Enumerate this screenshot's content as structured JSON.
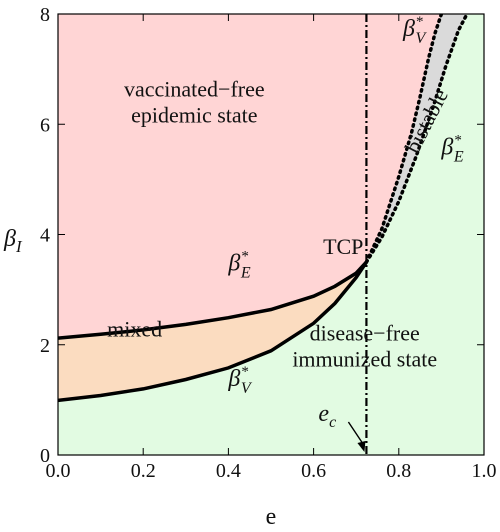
{
  "chart_data": {
    "type": "area",
    "xlabel": "e",
    "ylabel": "β_I",
    "xlim": [
      0,
      1
    ],
    "ylim": [
      0,
      8
    ],
    "x_ticks": [
      "0.0",
      "0.2",
      "0.4",
      "0.6",
      "0.8",
      "1.0"
    ],
    "y_ticks": [
      "0",
      "2",
      "4",
      "6",
      "8"
    ],
    "colors": {
      "epidemic": "#ffd5d5",
      "mixed": "#fbdcc0",
      "bistable": "#dadada",
      "disease_free": "#e2fbe2",
      "curve": "#000000"
    },
    "tcp": {
      "x": 0.724,
      "y": 3.5,
      "label": "TCP"
    },
    "e_c": {
      "x": 0.724,
      "label_base": "e",
      "label_sub": "c"
    },
    "series": [
      {
        "name": "β*_E",
        "x": [
          0,
          0.1,
          0.2,
          0.3,
          0.4,
          0.5,
          0.6,
          0.65,
          0.7,
          0.724,
          0.76,
          0.8,
          0.84,
          0.88,
          0.91,
          0.94,
          0.96
        ],
        "values": [
          2.12,
          2.19,
          2.27,
          2.37,
          2.49,
          2.64,
          2.88,
          3.06,
          3.3,
          3.5,
          3.95,
          4.6,
          5.4,
          6.3,
          7.05,
          7.7,
          8.0
        ]
      },
      {
        "name": "β*_V",
        "x": [
          0,
          0.1,
          0.2,
          0.3,
          0.4,
          0.5,
          0.6,
          0.65,
          0.7,
          0.724,
          0.76,
          0.8,
          0.83,
          0.85,
          0.87,
          0.885,
          0.9
        ],
        "values": [
          0.99,
          1.08,
          1.2,
          1.37,
          1.58,
          1.89,
          2.39,
          2.75,
          3.22,
          3.5,
          4.1,
          5.05,
          5.85,
          6.5,
          7.2,
          7.65,
          8.0
        ]
      }
    ],
    "regions": [
      {
        "label_lines": [
          "vaccinated−free",
          "epidemic state"
        ],
        "x": 0.32,
        "y": 6.5
      },
      {
        "label_lines": [
          "mixed"
        ],
        "x": 0.18,
        "y": 2.15
      },
      {
        "label_lines": [
          "disease−free",
          "immunized state"
        ],
        "x": 0.72,
        "y": 2.08
      },
      {
        "label_lines": [
          "bistable"
        ],
        "x": 0.88,
        "y": 6.0
      }
    ],
    "curve_labels": [
      {
        "series": "β*_E",
        "base": "β",
        "sub": "E",
        "sup": "*",
        "x": 0.4,
        "y": 3.35
      },
      {
        "series": "β*_V",
        "base": "β",
        "sub": "V",
        "sup": "*",
        "x": 0.4,
        "y": 1.25
      },
      {
        "series": "β*_V",
        "base": "β",
        "sub": "V",
        "sup": "*",
        "x": 0.81,
        "y": 7.6
      },
      {
        "series": "β*_E",
        "base": "β",
        "sub": "E",
        "sup": "*",
        "x": 0.9,
        "y": 5.45
      }
    ],
    "ylabel_parts": {
      "base": "β",
      "sub": "I"
    }
  }
}
